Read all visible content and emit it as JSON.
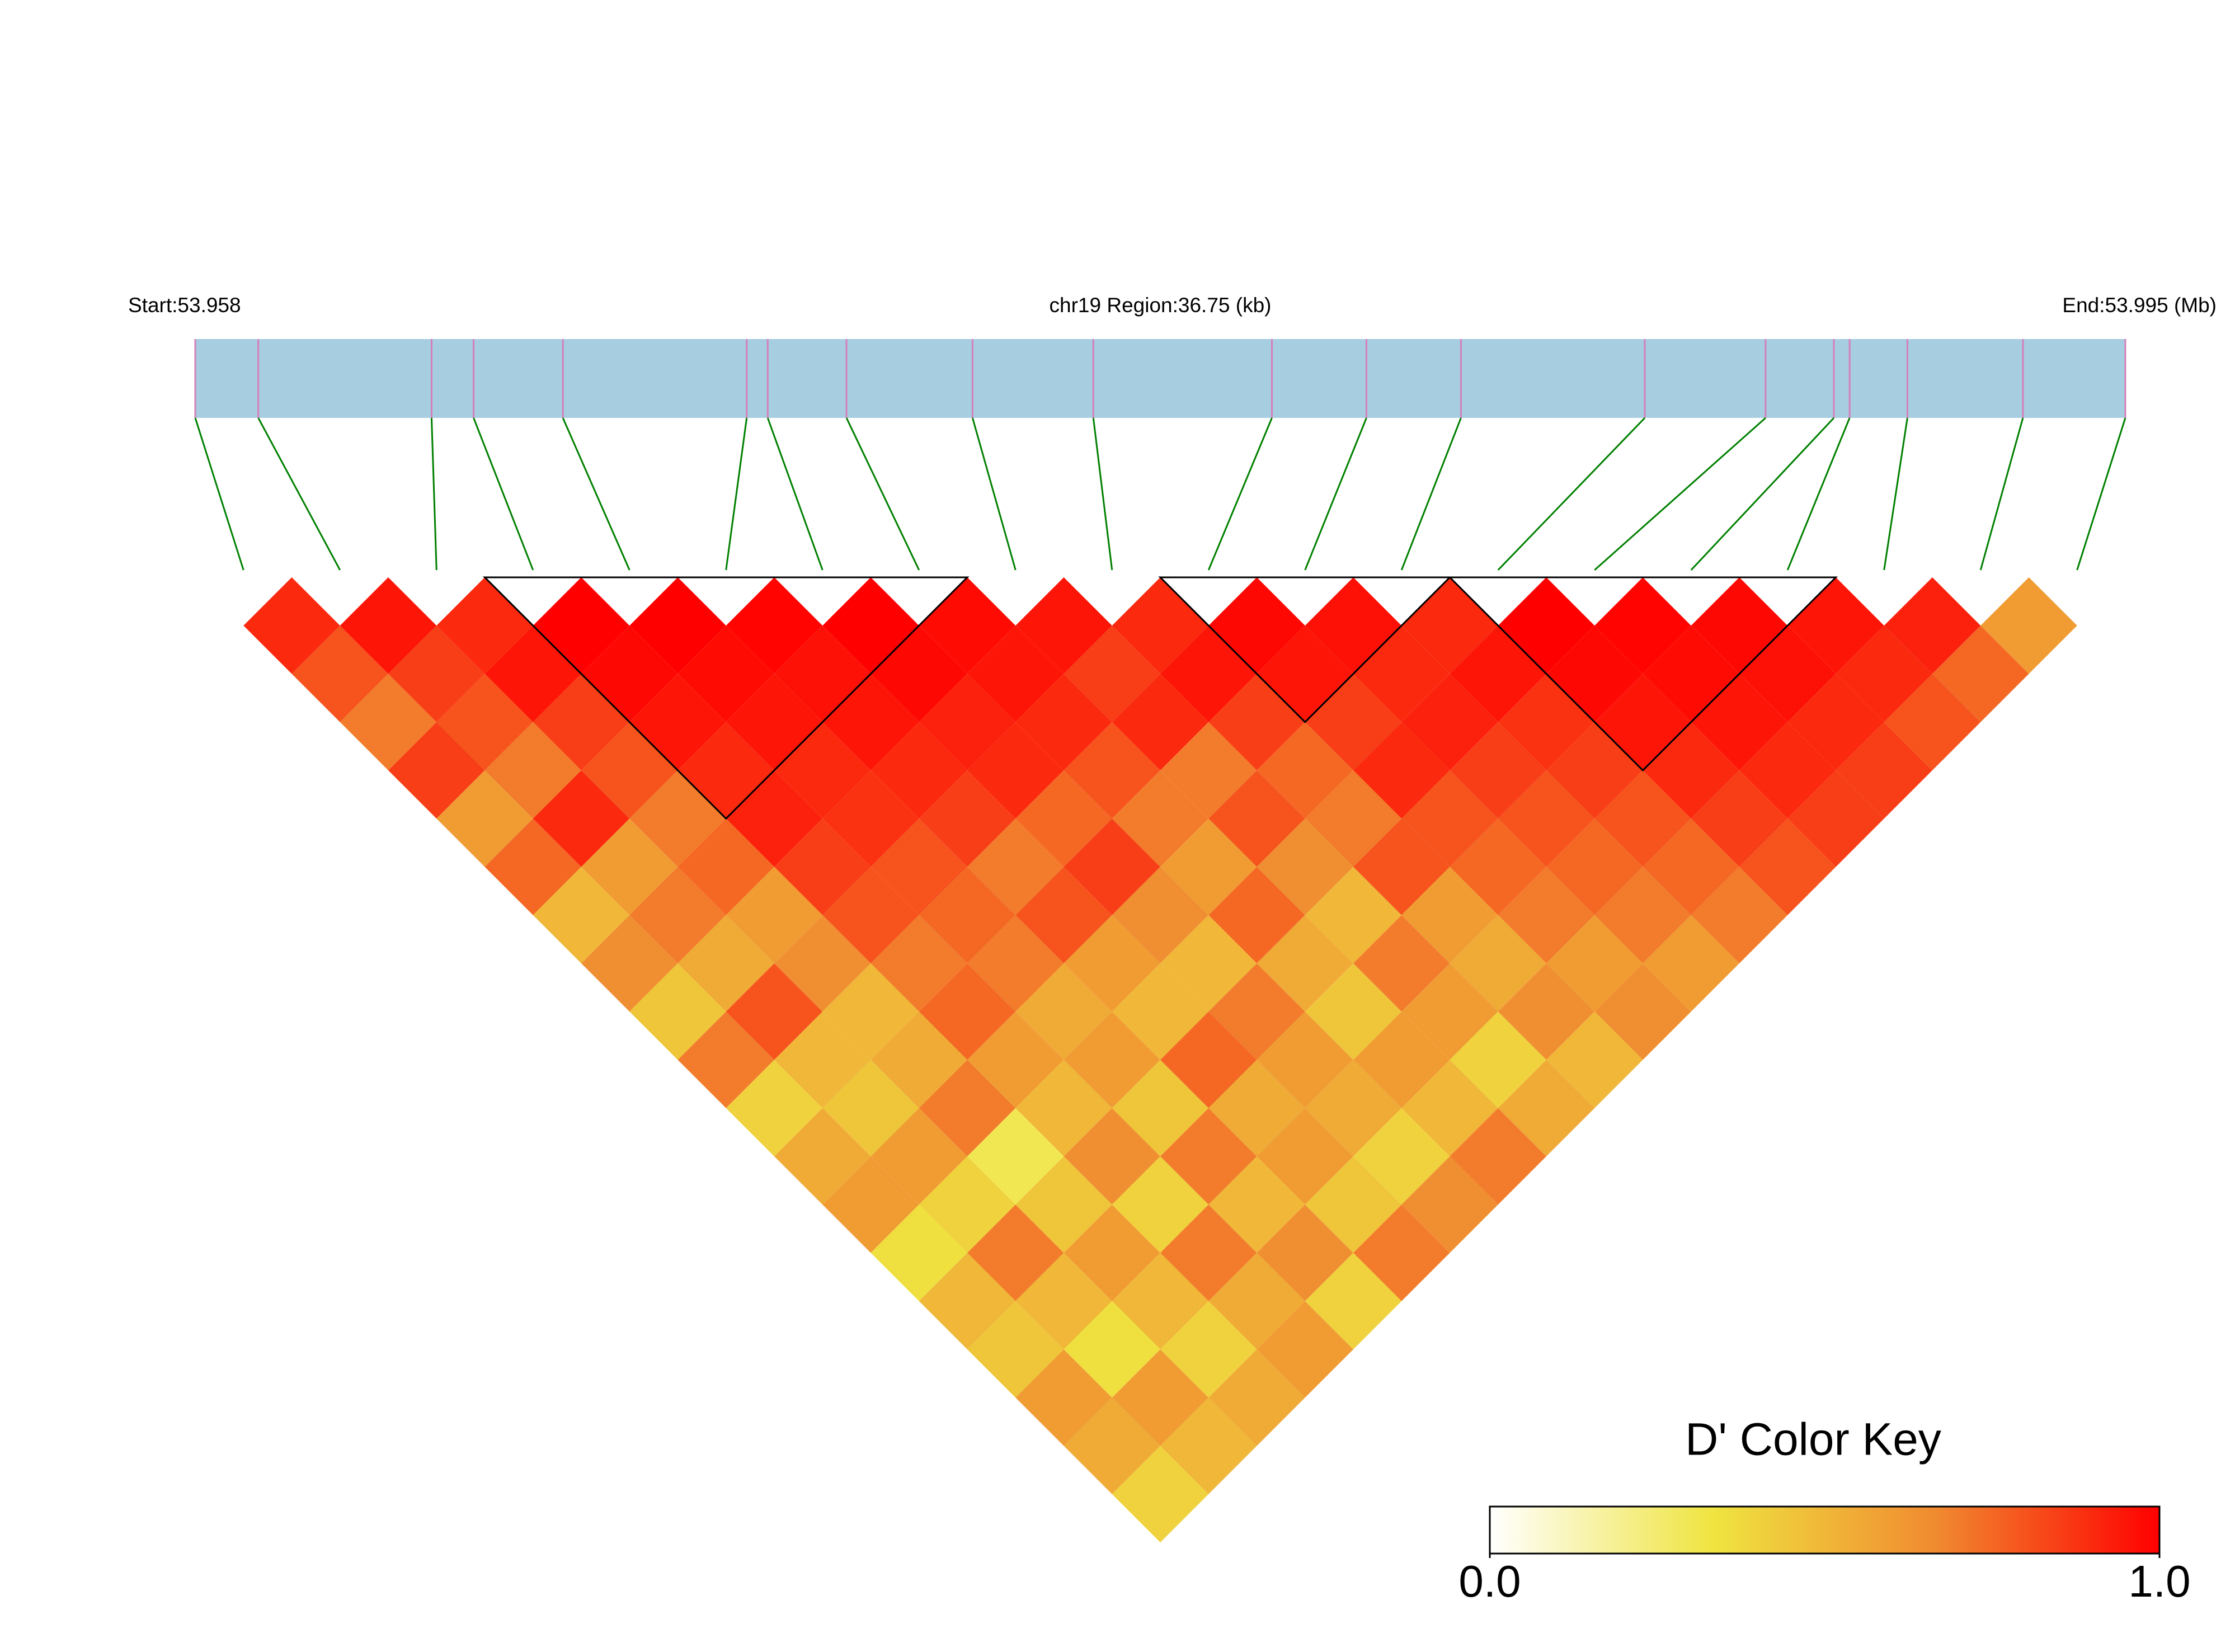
{
  "chart_data": {
    "type": "ld-heatmap",
    "start_label": "Start:53.958",
    "title": "chr19 Region:36.75 (kb)",
    "end_label": "End:53.995 (Mb)",
    "xlim": [
      0,
      36.75
    ],
    "positions": [
      0,
      1.2,
      4.5,
      5.3,
      7,
      10.5,
      10.9,
      12.4,
      14.8,
      17.1,
      20.5,
      22.3,
      24.1,
      27.6,
      29.9,
      31.2,
      31.5,
      32.6,
      34.8,
      36.75
    ],
    "values": [
      [
        0.9,
        0.8,
        0.7,
        0.85,
        0.6,
        0.75,
        0.5,
        0.65,
        0.45,
        0.7,
        0.4,
        0.55,
        0.6,
        0.35,
        0.5,
        0.45,
        0.6,
        0.55,
        0.4
      ],
      [
        0.95,
        0.85,
        0.8,
        0.7,
        0.9,
        0.6,
        0.7,
        0.55,
        0.8,
        0.5,
        0.45,
        0.6,
        0.4,
        0.7,
        0.5,
        0.35,
        0.6,
        0.5
      ],
      [
        0.9,
        0.95,
        0.85,
        0.8,
        0.7,
        0.75,
        0.6,
        0.65,
        0.5,
        0.55,
        0.7,
        0.3,
        0.45,
        0.6,
        0.5,
        0.4,
        0.55
      ],
      [
        1,
        0.98,
        0.95,
        0.9,
        0.92,
        0.85,
        0.8,
        0.7,
        0.75,
        0.6,
        0.5,
        0.65,
        0.4,
        0.7,
        0.55,
        0.6
      ],
      [
        1,
        0.97,
        0.95,
        0.9,
        0.88,
        0.8,
        0.75,
        0.7,
        0.55,
        0.6,
        0.45,
        0.7,
        0.5,
        0.65,
        0.4
      ],
      [
        0.99,
        0.96,
        0.95,
        0.9,
        0.85,
        0.7,
        0.8,
        0.6,
        0.5,
        0.75,
        0.55,
        0.6,
        0.45,
        0.7
      ],
      [
        1,
        0.98,
        0.92,
        0.9,
        0.75,
        0.85,
        0.65,
        0.5,
        0.7,
        0.6,
        0.55,
        0.4,
        0.65
      ],
      [
        0.97,
        0.95,
        0.9,
        0.8,
        0.7,
        0.6,
        0.75,
        0.55,
        0.45,
        0.6,
        0.5,
        0.7
      ],
      [
        0.95,
        0.85,
        0.9,
        0.7,
        0.8,
        0.65,
        0.5,
        0.7,
        0.6,
        0.4,
        0.55
      ],
      [
        0.9,
        0.95,
        0.85,
        0.75,
        0.7,
        0.8,
        0.6,
        0.55,
        0.65,
        0.5
      ],
      [
        0.98,
        0.95,
        0.85,
        0.9,
        0.8,
        0.75,
        0.7,
        0.6,
        0.65
      ],
      [
        0.96,
        0.9,
        0.92,
        0.85,
        0.8,
        0.75,
        0.7,
        0.6
      ],
      [
        0.9,
        0.95,
        0.88,
        0.85,
        0.8,
        0.75,
        0.7
      ],
      [
        1,
        0.98,
        0.95,
        0.9,
        0.85,
        0.8
      ],
      [
        0.99,
        0.97,
        0.95,
        0.9,
        0.85
      ],
      [
        0.98,
        0.96,
        0.9,
        0.85
      ],
      [
        0.95,
        0.9,
        0.8
      ],
      [
        0.92,
        0.75
      ],
      [
        0.6
      ]
    ],
    "blocks": [
      [
        3,
        7
      ],
      [
        10,
        12
      ],
      [
        13,
        16
      ]
    ],
    "bar_color": "#a7cde0",
    "marker_color": "#d57fbd",
    "link_color": "#008000",
    "colorscale": [
      "#ffffff",
      "#efe440",
      "#f08a30",
      "#ff0000"
    ],
    "colorbar": {
      "title": "D' Color Key",
      "zlim": [
        0,
        1
      ],
      "ticks": [
        {
          "value": 0,
          "label": "0.0"
        },
        {
          "value": 1,
          "label": "1.0"
        }
      ]
    }
  }
}
